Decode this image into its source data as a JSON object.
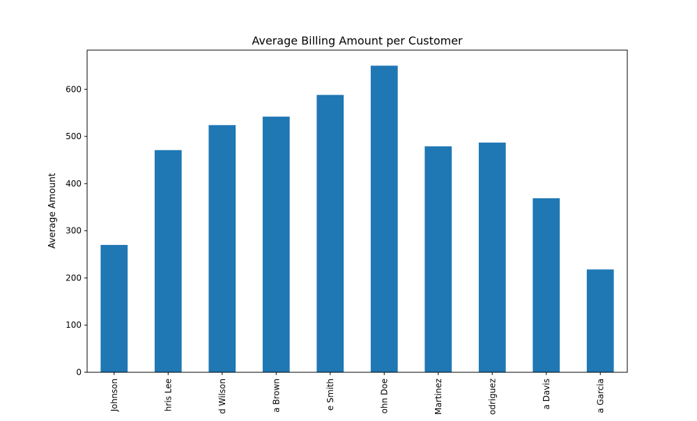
{
  "chart_data": {
    "type": "bar",
    "title": "Average Billing Amount per Customer",
    "xlabel": "",
    "ylabel": "Average Amount",
    "categories": [
      "Johnson",
      "hris Lee",
      "d Wilson",
      "a Brown",
      "e Smith",
      "ohn Doe",
      "Martinez",
      "odriguez",
      "a Davis",
      "a Garcia"
    ],
    "values": [
      270,
      471,
      524,
      542,
      588,
      650,
      479,
      487,
      369,
      218
    ],
    "ylim": [
      0,
      683
    ],
    "yticks": [
      0,
      100,
      200,
      300,
      400,
      500,
      600
    ],
    "bar_color": "#1f77b4",
    "grid": false,
    "legend": "none"
  }
}
